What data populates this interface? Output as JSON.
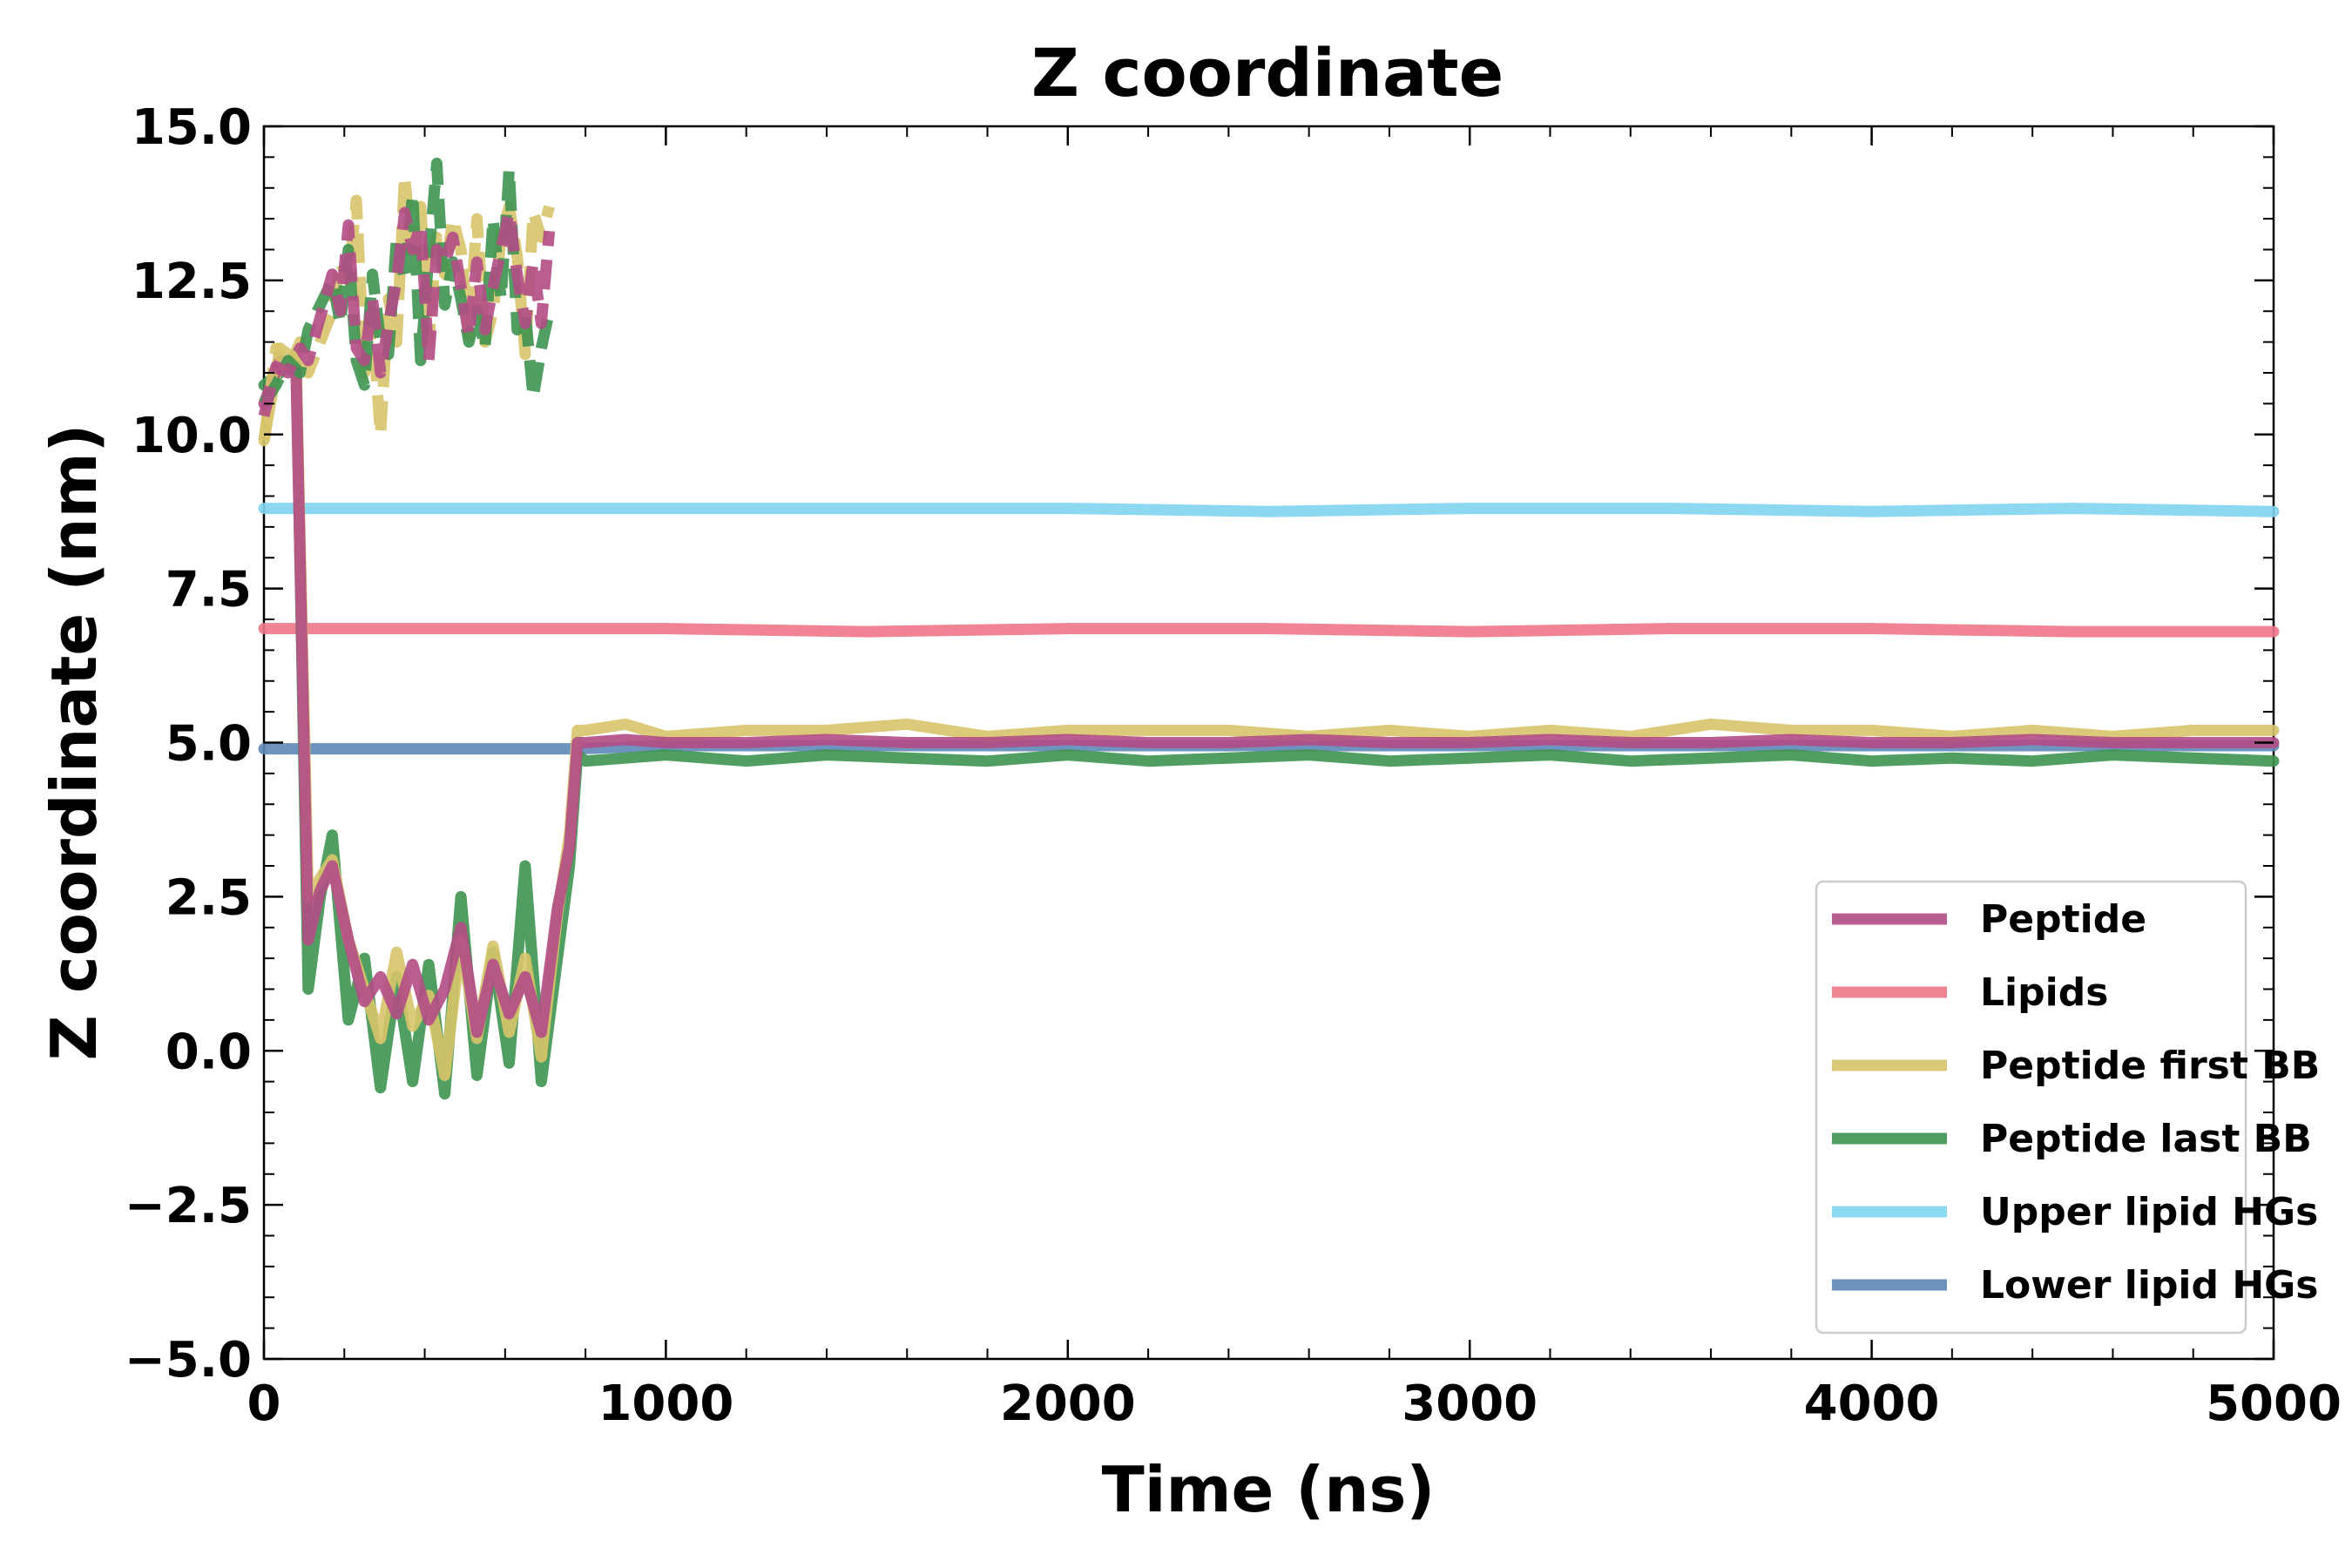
{
  "chart_data": {
    "type": "line",
    "title": "Z coordinate",
    "xlabel": "Time (ns)",
    "ylabel": "Z coordinate (nm)",
    "xlim": [
      0,
      5000
    ],
    "ylim": [
      -5,
      15
    ],
    "x_ticks": [
      0,
      1000,
      2000,
      3000,
      4000,
      5000
    ],
    "x_tick_labels": [
      "0",
      "1000",
      "2000",
      "3000",
      "4000",
      "5000"
    ],
    "y_ticks": [
      -5,
      -2.5,
      0,
      2.5,
      5,
      7.5,
      10,
      12.5,
      15
    ],
    "y_tick_labels": [
      "−5.0",
      "−2.5",
      "0.0",
      "2.5",
      "5.0",
      "7.5",
      "10.0",
      "12.5",
      "15.0"
    ],
    "grid": false,
    "legend_position": "lower-right",
    "series": [
      {
        "name": "Upper lipid HGs",
        "color": "#7fd4f0",
        "x": [
          0,
          500,
          1000,
          1500,
          2000,
          2500,
          3000,
          3500,
          4000,
          4500,
          5000
        ],
        "y": [
          8.8,
          8.8,
          8.8,
          8.8,
          8.8,
          8.75,
          8.8,
          8.8,
          8.75,
          8.8,
          8.75
        ]
      },
      {
        "name": "Lipids",
        "color": "#ee7788",
        "x": [
          0,
          500,
          1000,
          1500,
          2000,
          2500,
          3000,
          3500,
          4000,
          4500,
          5000
        ],
        "y": [
          6.85,
          6.85,
          6.85,
          6.8,
          6.85,
          6.85,
          6.8,
          6.85,
          6.85,
          6.8,
          6.8
        ]
      },
      {
        "name": "Lower lipid HGs",
        "color": "#5f87b8",
        "x": [
          0,
          500,
          780,
          1000,
          2000,
          3000,
          4000,
          5000
        ],
        "y": [
          4.9,
          4.9,
          4.9,
          4.95,
          4.95,
          4.95,
          4.95,
          4.95
        ]
      },
      {
        "name": "Peptide last BB",
        "color": "#3d9350",
        "x": [
          0,
          40,
          80,
          110,
          140,
          170,
          210,
          250,
          290,
          330,
          370,
          410,
          450,
          490,
          530,
          570,
          610,
          650,
          690,
          730,
          760,
          780,
          800,
          900,
          1000,
          1200,
          1400,
          1600,
          1800,
          2000,
          2200,
          2400,
          2600,
          2800,
          3000,
          3200,
          3400,
          3600,
          3800,
          4000,
          4200,
          4400,
          4600,
          4800,
          5000
        ],
        "y": [
          10.8,
          11.0,
          11.3,
          1.0,
          2.5,
          3.5,
          0.5,
          1.5,
          -0.6,
          1.2,
          -0.5,
          1.4,
          -0.7,
          2.5,
          -0.4,
          1.6,
          -0.2,
          3.0,
          -0.5,
          1.5,
          3.0,
          4.8,
          4.7,
          4.75,
          4.8,
          4.7,
          4.8,
          4.75,
          4.7,
          4.8,
          4.7,
          4.75,
          4.8,
          4.7,
          4.75,
          4.8,
          4.7,
          4.75,
          4.8,
          4.7,
          4.75,
          4.7,
          4.8,
          4.75,
          4.7
        ]
      },
      {
        "name": "Peptide first BB",
        "color": "#d7c46a",
        "x": [
          0,
          40,
          80,
          110,
          140,
          170,
          210,
          250,
          290,
          330,
          370,
          410,
          450,
          490,
          530,
          570,
          610,
          650,
          690,
          730,
          760,
          780,
          800,
          900,
          1000,
          1200,
          1400,
          1600,
          1800,
          2000,
          2200,
          2400,
          2600,
          2800,
          3000,
          3200,
          3400,
          3600,
          3800,
          4000,
          4200,
          4400,
          4600,
          4800,
          5000
        ],
        "y": [
          9.9,
          11.4,
          11.2,
          2.5,
          2.8,
          3.1,
          1.8,
          1.0,
          0.2,
          1.6,
          0.4,
          0.9,
          -0.4,
          1.8,
          0.2,
          1.7,
          0.3,
          1.5,
          -0.1,
          2.2,
          3.5,
          5.2,
          5.2,
          5.3,
          5.1,
          5.2,
          5.2,
          5.3,
          5.1,
          5.2,
          5.2,
          5.2,
          5.1,
          5.2,
          5.1,
          5.2,
          5.1,
          5.3,
          5.2,
          5.2,
          5.1,
          5.2,
          5.1,
          5.2,
          5.2
        ]
      },
      {
        "name": "Peptide",
        "color": "#b24d86",
        "x": [
          0,
          40,
          80,
          110,
          140,
          170,
          210,
          250,
          290,
          330,
          370,
          410,
          450,
          490,
          530,
          570,
          610,
          650,
          690,
          730,
          760,
          780,
          800,
          900,
          1000,
          1200,
          1400,
          1600,
          1800,
          2000,
          2200,
          2400,
          2600,
          2800,
          3000,
          3200,
          3400,
          3600,
          3800,
          4000,
          4200,
          4400,
          4600,
          4800,
          5000
        ],
        "y": [
          10.5,
          11.2,
          11.0,
          1.8,
          2.6,
          3.0,
          1.8,
          0.8,
          1.2,
          0.6,
          1.4,
          0.5,
          1.0,
          2.0,
          0.3,
          1.4,
          0.6,
          1.2,
          0.3,
          2.3,
          3.3,
          5.0,
          5.0,
          5.05,
          5.0,
          5.0,
          5.05,
          5.0,
          5.0,
          5.05,
          5.0,
          5.0,
          5.05,
          5.0,
          5.0,
          5.05,
          5.0,
          5.0,
          5.05,
          5.0,
          5.0,
          5.05,
          5.0,
          5.0,
          5.0
        ]
      }
    ],
    "fragments": [
      {
        "series": "Peptide first BB",
        "x": [
          0,
          30,
          60,
          90,
          110,
          170,
          190,
          210,
          230,
          250,
          270,
          290,
          310,
          330,
          350,
          370,
          390,
          410,
          430,
          450,
          470,
          490,
          510,
          530,
          550,
          570,
          590,
          610,
          630,
          650,
          670,
          690,
          710
        ],
        "y": [
          9.9,
          11.4,
          11.0,
          11.5,
          11.0,
          12.0,
          12.8,
          12.5,
          13.8,
          11.0,
          11.8,
          10.0,
          12.2,
          11.5,
          14.2,
          12.8,
          13.7,
          11.5,
          13.2,
          12.6,
          13.5,
          13.0,
          11.6,
          13.5,
          11.5,
          12.0,
          13.2,
          13.7,
          12.9,
          11.3,
          13.6,
          13.2,
          13.7
        ]
      },
      {
        "series": "Peptide last BB",
        "x": [
          0,
          30,
          60,
          90,
          110,
          170,
          190,
          210,
          230,
          250,
          270,
          290,
          310,
          330,
          350,
          370,
          390,
          410,
          430,
          450,
          470,
          490,
          510,
          530,
          550,
          570,
          590,
          610,
          630,
          650,
          670,
          690,
          710
        ],
        "y": [
          10.5,
          10.8,
          11.2,
          11.0,
          11.7,
          12.5,
          11.8,
          13.0,
          11.2,
          10.8,
          12.6,
          11.5,
          11.3,
          13.2,
          12.5,
          13.9,
          11.2,
          12.9,
          14.4,
          12.1,
          12.8,
          12.2,
          11.5,
          12.0,
          11.4,
          13.5,
          12.2,
          14.3,
          11.7,
          12.0,
          10.6,
          11.4,
          12.0
        ]
      },
      {
        "series": "Peptide",
        "x": [
          0,
          30,
          60,
          90,
          110,
          170,
          190,
          210,
          230,
          250,
          270,
          290,
          310,
          330,
          350,
          370,
          390,
          410,
          430,
          450,
          470,
          490,
          510,
          530,
          550,
          570,
          590,
          610,
          630,
          650,
          670,
          690,
          710
        ],
        "y": [
          10.3,
          11.1,
          11.0,
          11.4,
          11.2,
          12.6,
          12.0,
          13.4,
          11.4,
          11.2,
          12.2,
          11.0,
          11.8,
          12.5,
          13.6,
          13.0,
          13.4,
          11.2,
          13.0,
          12.8,
          13.2,
          12.4,
          11.6,
          12.8,
          11.7,
          12.4,
          13.0,
          13.6,
          12.6,
          11.8,
          12.8,
          11.8,
          13.3
        ]
      }
    ],
    "legend_order": [
      "Peptide",
      "Lipids",
      "Peptide first BB",
      "Peptide last BB",
      "Upper lipid HGs",
      "Lower lipid HGs"
    ]
  }
}
